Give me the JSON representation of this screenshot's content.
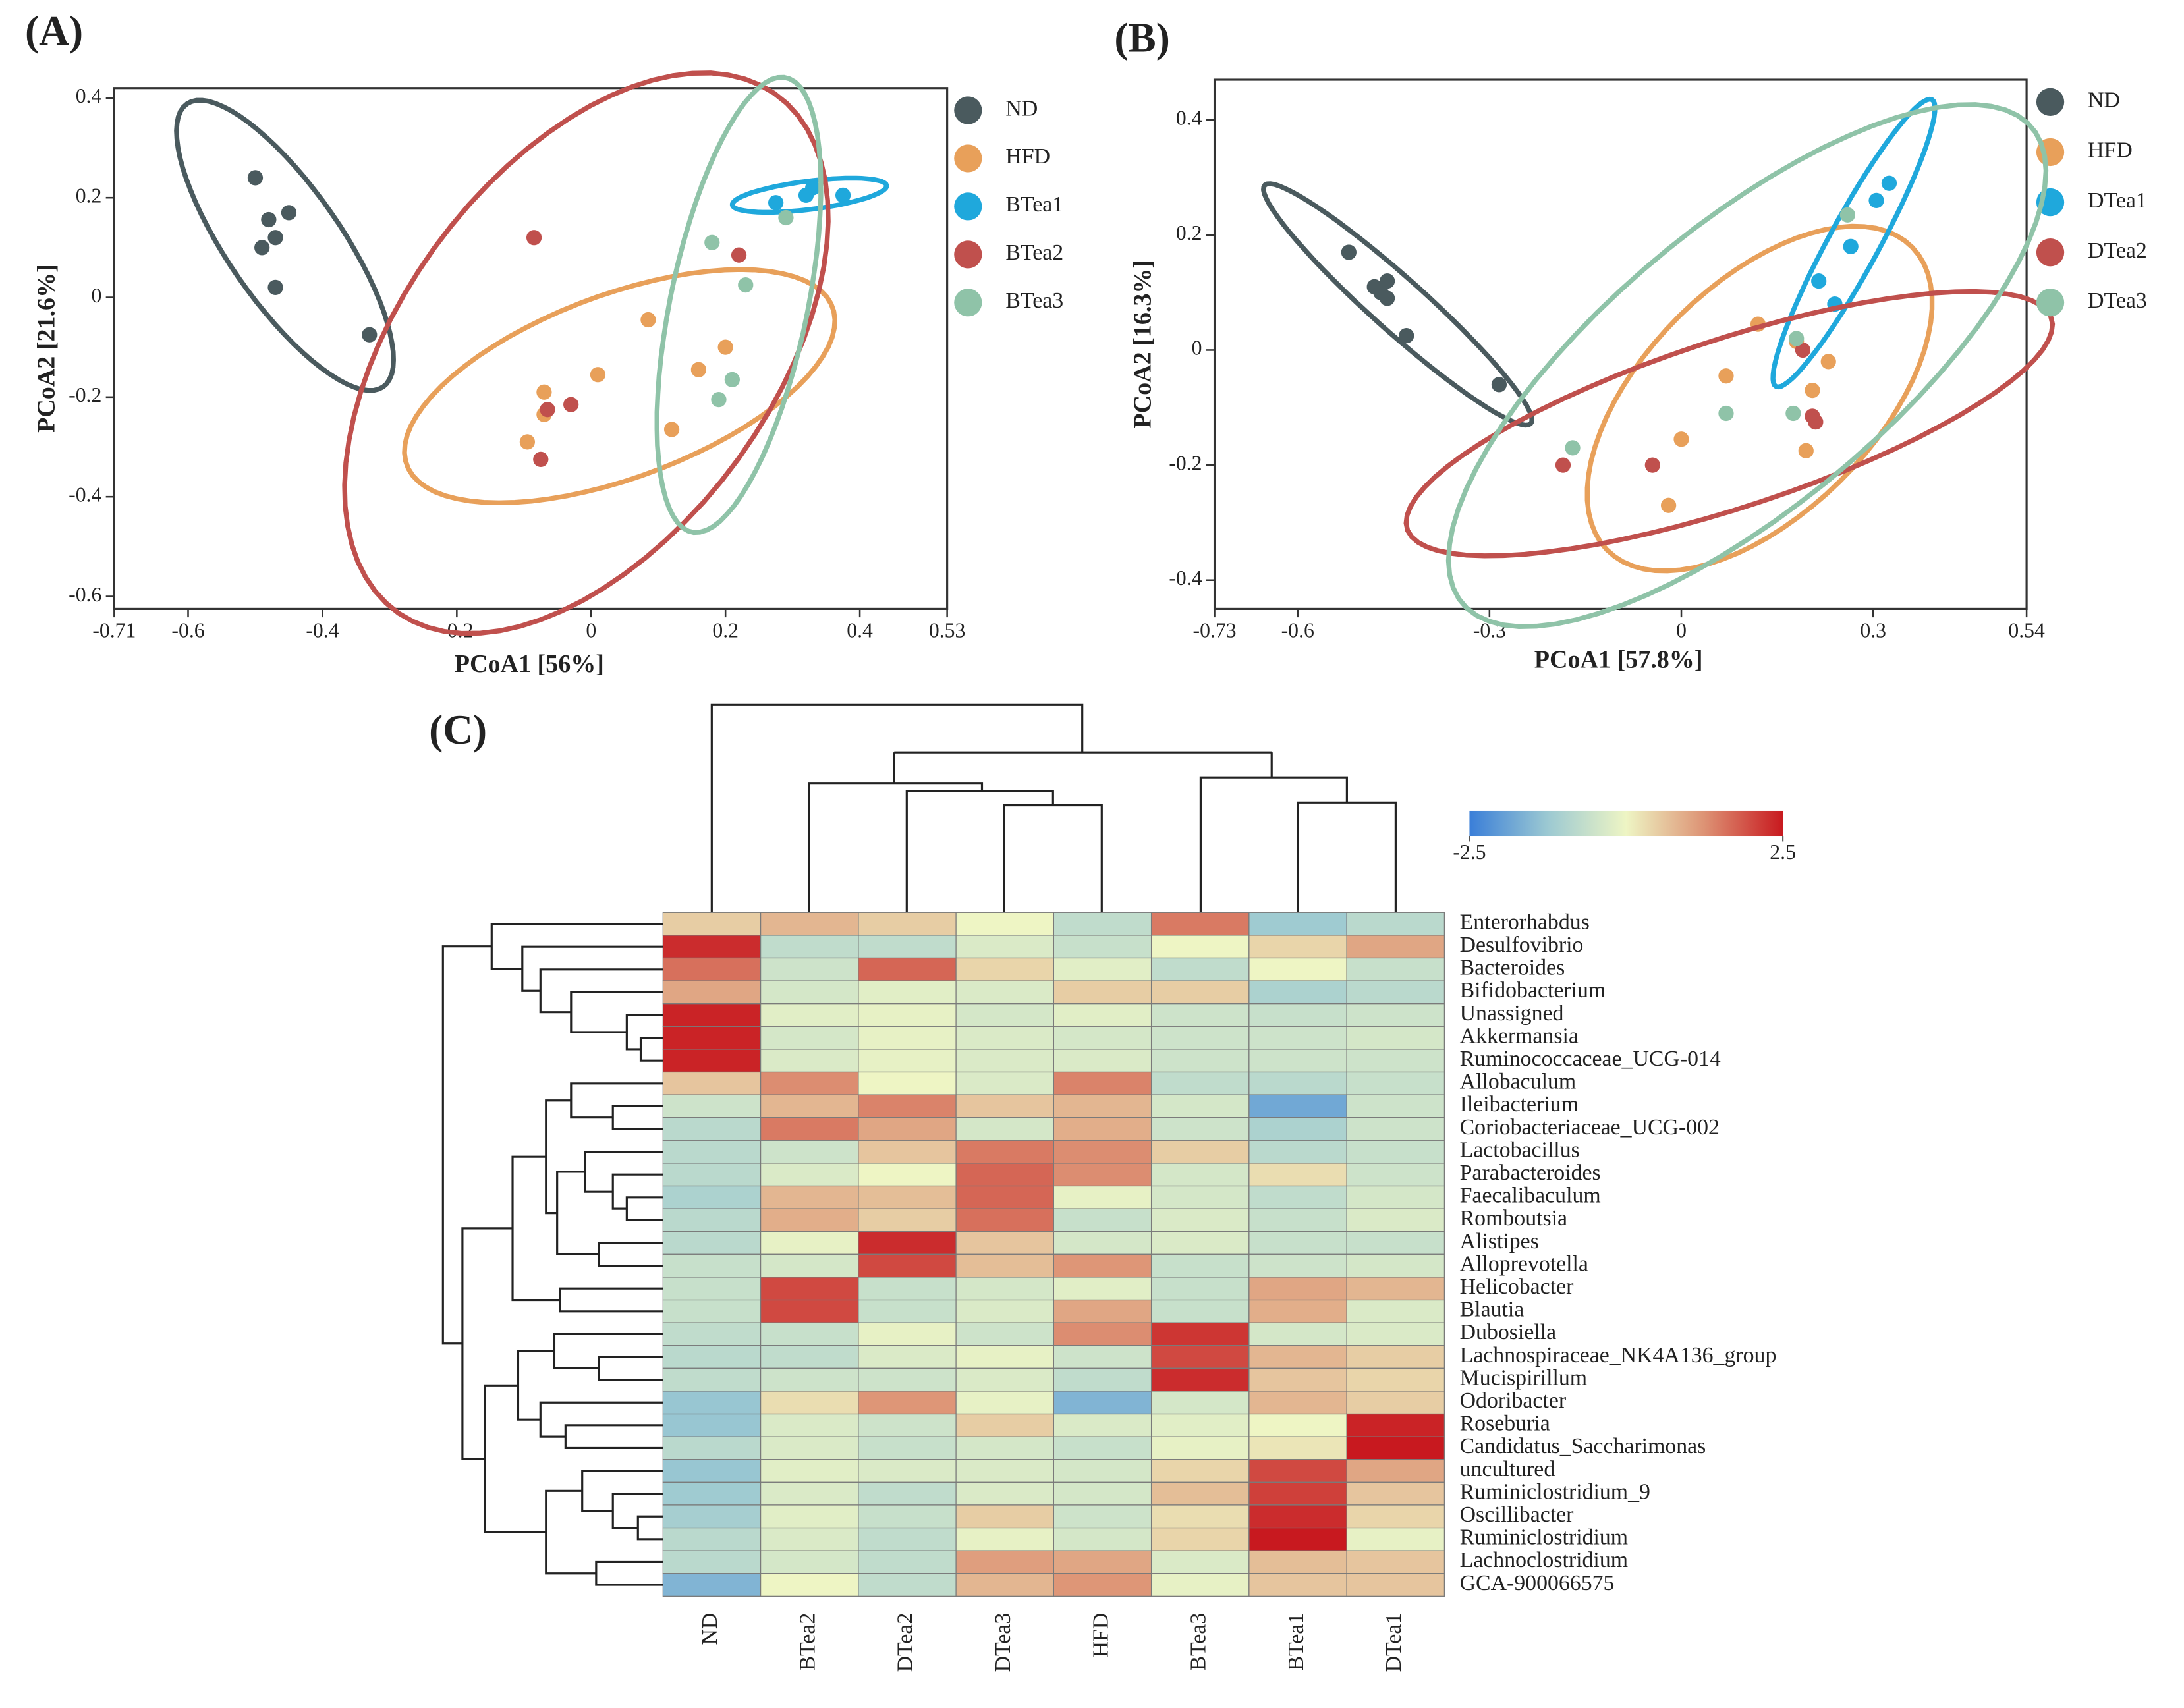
{
  "chart_data": [
    {
      "type": "scatter",
      "panel_label": "(A)",
      "xlabel": "PCoA1 [56%]",
      "ylabel": "PCoA2 [21.6%]",
      "xlim": [
        -0.71,
        0.53
      ],
      "xticks": [
        -0.71,
        -0.6,
        -0.4,
        -0.2,
        0,
        0.2,
        0.4,
        0.53
      ],
      "ylim": [
        -0.625,
        0.42
      ],
      "yticks": [
        -0.6,
        -0.4,
        -0.2,
        0,
        0.2,
        0.4
      ],
      "series": [
        {
          "name": "ND",
          "color": "#4a5a5e",
          "x": [
            -0.5,
            -0.48,
            -0.45,
            -0.47,
            -0.49,
            -0.47,
            -0.33
          ],
          "values": [
            0.24,
            0.156,
            0.17,
            0.12,
            0.1,
            0.02,
            -0.075
          ]
        },
        {
          "name": "HFD",
          "color": "#e8a05a",
          "x": [
            -0.095,
            -0.07,
            -0.07,
            0.01,
            0.085,
            0.12,
            0.16,
            0.2
          ],
          "values": [
            -0.29,
            -0.19,
            -0.235,
            -0.155,
            -0.045,
            -0.265,
            -0.145,
            -0.1
          ]
        },
        {
          "name": "BTea1",
          "color": "#1fa8dc",
          "x": [
            0.275,
            0.32,
            0.375,
            0.33
          ],
          "values": [
            0.19,
            0.205,
            0.205,
            0.22
          ]
        },
        {
          "name": "BTea2",
          "color": "#c0504d",
          "x": [
            -0.085,
            0.22,
            -0.03,
            -0.065,
            -0.075
          ],
          "values": [
            0.12,
            0.085,
            -0.215,
            -0.225,
            -0.325
          ]
        },
        {
          "name": "BTea3",
          "color": "#8fc3a8",
          "x": [
            0.18,
            0.23,
            0.21,
            0.19,
            0.29
          ],
          "values": [
            0.11,
            0.025,
            -0.165,
            -0.205,
            0.16
          ]
        }
      ]
    },
    {
      "type": "scatter",
      "panel_label": "(B)",
      "xlabel": "PCoA1 [57.8%]",
      "ylabel": "PCoA2 [16.3%]",
      "xlim": [
        -0.73,
        0.54
      ],
      "xticks": [
        -0.73,
        -0.6,
        -0.3,
        0,
        0.3,
        0.54
      ],
      "ylim": [
        -0.45,
        0.47
      ],
      "yticks": [
        -0.4,
        -0.2,
        0,
        0.2,
        0.4
      ],
      "series": [
        {
          "name": "ND",
          "color": "#4a5a5e",
          "x": [
            -0.52,
            -0.48,
            -0.46,
            -0.46,
            -0.47,
            -0.43,
            -0.285
          ],
          "values": [
            0.17,
            0.11,
            0.12,
            0.09,
            0.1,
            0.025,
            -0.06
          ]
        },
        {
          "name": "HFD",
          "color": "#e8a05a",
          "x": [
            0.12,
            0.07,
            0.0,
            -0.02,
            0.18,
            0.23,
            0.205,
            0.195
          ],
          "values": [
            0.045,
            -0.045,
            -0.155,
            -0.27,
            0.015,
            -0.02,
            -0.07,
            -0.175
          ]
        },
        {
          "name": "DTea1",
          "color": "#1fa8dc",
          "x": [
            0.215,
            0.24,
            0.265,
            0.305,
            0.325
          ],
          "values": [
            0.12,
            0.08,
            0.18,
            0.26,
            0.29
          ]
        },
        {
          "name": "DTea2",
          "color": "#c0504d",
          "x": [
            -0.185,
            -0.045,
            0.19,
            0.205,
            0.21
          ],
          "values": [
            -0.2,
            -0.2,
            0.0,
            -0.115,
            -0.125
          ]
        },
        {
          "name": "DTea3",
          "color": "#8fc3a8",
          "x": [
            -0.17,
            0.07,
            0.175,
            0.18,
            0.26
          ],
          "values": [
            -0.17,
            -0.11,
            -0.11,
            0.02,
            0.235
          ]
        }
      ]
    },
    {
      "type": "heatmap",
      "panel_label": "(C)",
      "categories": [
        "ND",
        "BTea2",
        "DTea2",
        "DTea3",
        "HFD",
        "BTea3",
        "BTea1",
        "DTea1"
      ],
      "rows": [
        "Enterorhabdus",
        "Desulfovibrio",
        "Bacteroides",
        "Bifidobacterium",
        "Unassigned",
        "Akkermansia",
        "Ruminococcaceae_UCG-014",
        "Allobaculum",
        "Ileibacterium",
        "Coriobacteriaceae_UCG-002",
        "Lactobacillus",
        "Parabacteroides",
        "Faecalibaculum",
        "Romboutsia",
        "Alistipes",
        "Alloprevotella",
        "Helicobacter",
        "Blautia",
        "Dubosiella",
        "Lachnospiraceae_NK4A136_group",
        "Mucispirillum",
        "Odoribacter",
        "Roseburia",
        "Candidatus_Saccharimonas",
        "uncultured",
        "Ruminiclostridium_9",
        "Oscillibacter",
        "Ruminiclostridium",
        "Lachnoclostridium",
        "GCA-900066575"
      ],
      "values": [
        [
          0.5,
          0.8,
          0.5,
          0,
          -0.7,
          1.5,
          -1.2,
          -0.8
        ],
        [
          2.3,
          -0.7,
          -0.7,
          -0.3,
          -0.6,
          0,
          0.4,
          1.0
        ],
        [
          1.6,
          -0.5,
          1.7,
          0.4,
          -0.2,
          -0.7,
          0,
          -0.6
        ],
        [
          1.0,
          -0.4,
          -0.2,
          -0.3,
          0.5,
          0.5,
          -1.0,
          -0.8
        ],
        [
          2.4,
          -0.2,
          -0.1,
          -0.4,
          -0.2,
          -0.5,
          -0.6,
          -0.5
        ],
        [
          2.4,
          -0.4,
          -0.1,
          -0.3,
          -0.4,
          -0.5,
          -0.5,
          -0.4
        ],
        [
          2.4,
          -0.3,
          -0.1,
          -0.3,
          -0.3,
          -0.5,
          -0.5,
          -0.5
        ],
        [
          0.6,
          1.3,
          0,
          -0.3,
          1.4,
          -0.7,
          -0.8,
          -0.6
        ],
        [
          -0.5,
          0.8,
          1.4,
          0.6,
          0.8,
          -0.4,
          -1.8,
          -0.5
        ],
        [
          -0.8,
          1.5,
          1.0,
          -0.4,
          0.9,
          -0.5,
          -1.0,
          -0.5
        ],
        [
          -0.8,
          -0.5,
          0.6,
          1.5,
          1.3,
          0.5,
          -0.8,
          -0.6
        ],
        [
          -0.8,
          -0.3,
          0,
          1.7,
          1.3,
          -0.4,
          0.3,
          -0.5
        ],
        [
          -1.0,
          0.8,
          0.7,
          1.7,
          -0.1,
          -0.4,
          -0.7,
          -0.4
        ],
        [
          -0.8,
          0.9,
          0.5,
          1.6,
          -0.6,
          -0.3,
          -0.6,
          -0.3
        ],
        [
          -0.8,
          -0.1,
          2.3,
          0.6,
          -0.4,
          -0.3,
          -0.6,
          -0.6
        ],
        [
          -0.6,
          -0.4,
          2.0,
          0.7,
          1.2,
          -0.6,
          -0.5,
          -0.4
        ],
        [
          -0.6,
          2.0,
          -0.6,
          -0.4,
          -0.2,
          -0.6,
          1.0,
          0.8
        ],
        [
          -0.6,
          2.0,
          -0.6,
          -0.3,
          1.0,
          -0.6,
          0.9,
          -0.3
        ],
        [
          -0.7,
          -0.6,
          -0.1,
          -0.5,
          1.3,
          2.2,
          -0.4,
          -0.3
        ],
        [
          -0.8,
          -0.7,
          -0.3,
          -0.1,
          -0.5,
          2.0,
          0.8,
          0.5
        ],
        [
          -0.7,
          -0.5,
          -0.5,
          -0.3,
          -0.7,
          2.3,
          0.6,
          0.4
        ],
        [
          -1.3,
          0.3,
          1.2,
          -0.1,
          -1.6,
          -0.4,
          0.8,
          0.5
        ],
        [
          -1.3,
          -0.3,
          -0.5,
          0.5,
          -0.3,
          -0.2,
          0,
          2.4
        ],
        [
          -0.8,
          -0.3,
          -0.6,
          -0.4,
          -0.6,
          -0.1,
          0.2,
          2.5
        ],
        [
          -1.3,
          -0.2,
          -0.3,
          -0.3,
          -0.4,
          0.4,
          2.0,
          1.0
        ],
        [
          -1.2,
          -0.3,
          -0.7,
          -0.3,
          -0.4,
          0.7,
          2.1,
          0.6
        ],
        [
          -1.1,
          -0.2,
          -0.6,
          0.5,
          -0.5,
          0.3,
          2.3,
          0.4
        ],
        [
          -0.8,
          -0.3,
          -0.7,
          -0.1,
          -0.4,
          0.4,
          2.5,
          -0.1
        ],
        [
          -0.8,
          -0.4,
          -0.7,
          1.1,
          1.0,
          -0.3,
          0.7,
          0.6
        ],
        [
          -1.6,
          0,
          -0.7,
          0.8,
          1.2,
          -0.1,
          0.6,
          0.6
        ]
      ],
      "colorbar": {
        "range": [
          -2.5,
          2.5
        ],
        "ticks": [
          -2.5,
          2.5
        ],
        "colors": [
          "#3a7ed8",
          "#9cc9d2",
          "#eef5c4",
          "#dd9274",
          "#c8191f"
        ]
      }
    }
  ]
}
